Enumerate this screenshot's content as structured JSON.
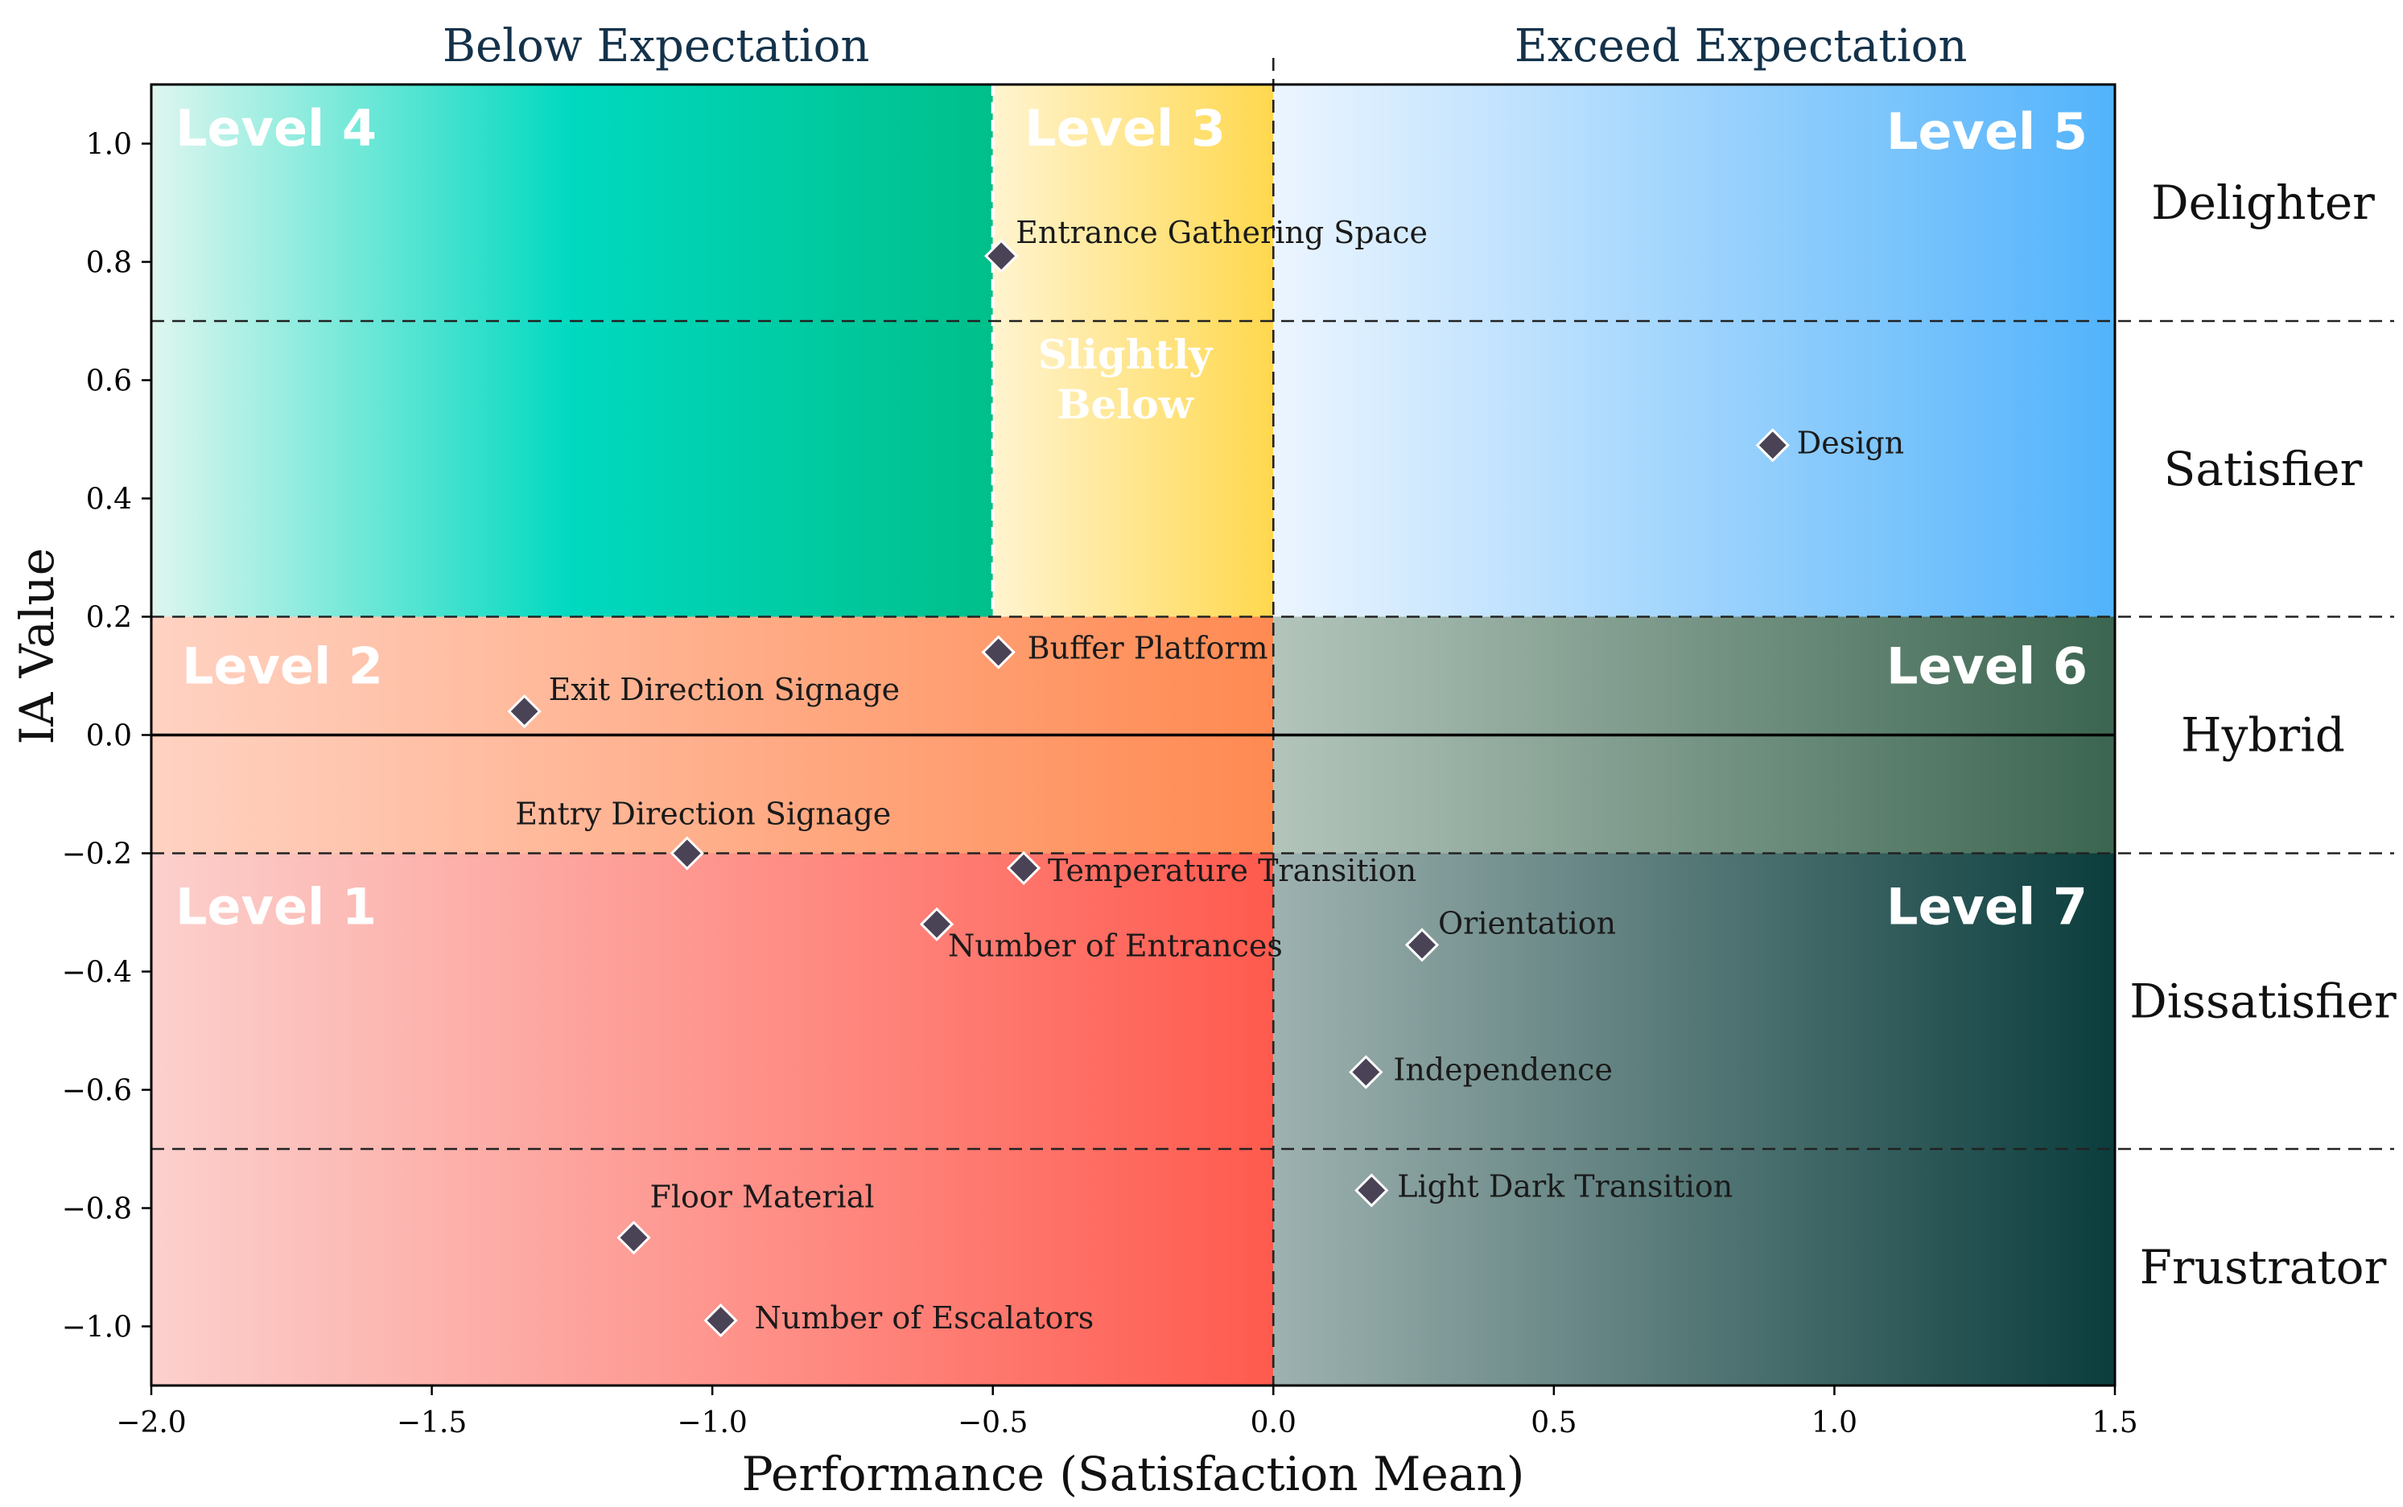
{
  "chart_data": {
    "type": "scatter",
    "title": "",
    "xlabel": "Performance (Satisfaction Mean)",
    "ylabel": "IA Value",
    "xlim": [
      -2.0,
      1.5
    ],
    "ylim": [
      -1.1,
      1.1
    ],
    "xticks": [
      -2.0,
      -1.5,
      -1.0,
      -0.5,
      0.0,
      0.5,
      1.0,
      1.5
    ],
    "yticks": [
      1.0,
      0.8,
      0.6,
      0.4,
      0.2,
      0.0,
      -0.2,
      -0.4,
      -0.6,
      -0.8,
      -1.0
    ],
    "xtick_labels": [
      "−2.0",
      "−1.5",
      "−1.0",
      "−0.5",
      "0.0",
      "0.5",
      "1.0",
      "1.5"
    ],
    "ytick_labels": [
      "1.0",
      "0.8",
      "0.6",
      "0.4",
      "0.2",
      "0.0",
      "−0.2",
      "−0.4",
      "−0.6",
      "−0.8",
      "−1.0"
    ],
    "top_labels": {
      "left": "Below Expectation",
      "right": "Exceed Expectation"
    },
    "category_labels": [
      {
        "label": "Delighter",
        "y": 0.9
      },
      {
        "label": "Satisfier",
        "y": 0.45
      },
      {
        "label": "Hybrid",
        "y": 0.0
      },
      {
        "label": "Dissatisfier",
        "y": -0.45
      },
      {
        "label": "Frustrator",
        "y": -0.9
      }
    ],
    "zones": [
      {
        "label": "Level 4",
        "x0": -2.0,
        "x1": -0.5,
        "y0": 0.2,
        "y1": 1.1,
        "colors": [
          "#def6ef",
          "#00d9c0",
          "#00bf8a"
        ]
      },
      {
        "label": "Level 3",
        "x0": -0.5,
        "x1": 0.0,
        "y0": 0.2,
        "y1": 1.1,
        "colors": [
          "#fff4d0",
          "#ffd84e"
        ],
        "sublabel": [
          "Slightly",
          "Below"
        ]
      },
      {
        "label": "Level 5",
        "x0": 0.0,
        "x1": 1.5,
        "y0": 0.2,
        "y1": 1.1,
        "colors": [
          "#ecf5ff",
          "#52b3fb"
        ]
      },
      {
        "label": "Level 2",
        "x0": -2.0,
        "x1": 0.0,
        "y0": -0.2,
        "y1": 0.2,
        "colors": [
          "#ffd2c2",
          "#ff8a52"
        ]
      },
      {
        "label": "Level 6",
        "x0": 0.0,
        "x1": 1.5,
        "y0": -0.2,
        "y1": 0.2,
        "colors": [
          "#b3c5bb",
          "#3b6550"
        ]
      },
      {
        "label": "Level 1",
        "x0": -2.0,
        "x1": 0.0,
        "y0": -1.1,
        "y1": -0.2,
        "colors": [
          "#fcd0cd",
          "#ff5a4e"
        ]
      },
      {
        "label": "Level 7",
        "x0": 0.0,
        "x1": 1.5,
        "y0": -1.1,
        "y1": -0.2,
        "colors": [
          "#9eb2b0",
          "#0b3d3d"
        ]
      }
    ],
    "hlines": [
      0.7,
      0.2,
      -0.2,
      -0.7
    ],
    "points": [
      {
        "label": "Entrance Gathering Space",
        "x": -0.485,
        "y": 0.81
      },
      {
        "label": "Design",
        "x": 0.89,
        "y": 0.49
      },
      {
        "label": "Buffer Platform",
        "x": -0.49,
        "y": 0.14
      },
      {
        "label": "Exit Direction Signage",
        "x": -1.335,
        "y": 0.04
      },
      {
        "label": "Entry Direction Signage",
        "x": -1.045,
        "y": -0.2
      },
      {
        "label": "Temperature Transition",
        "x": -0.445,
        "y": -0.225
      },
      {
        "label": "Number of Entrances",
        "x": -0.6,
        "y": -0.32
      },
      {
        "label": "Orientation",
        "x": 0.265,
        "y": -0.355
      },
      {
        "label": "Independence",
        "x": 0.165,
        "y": -0.57
      },
      {
        "label": "Light Dark Transition",
        "x": 0.175,
        "y": -0.77
      },
      {
        "label": "Floor Material",
        "x": -1.14,
        "y": -0.85
      },
      {
        "label": "Number of Escalators",
        "x": -0.985,
        "y": -0.99
      }
    ]
  }
}
